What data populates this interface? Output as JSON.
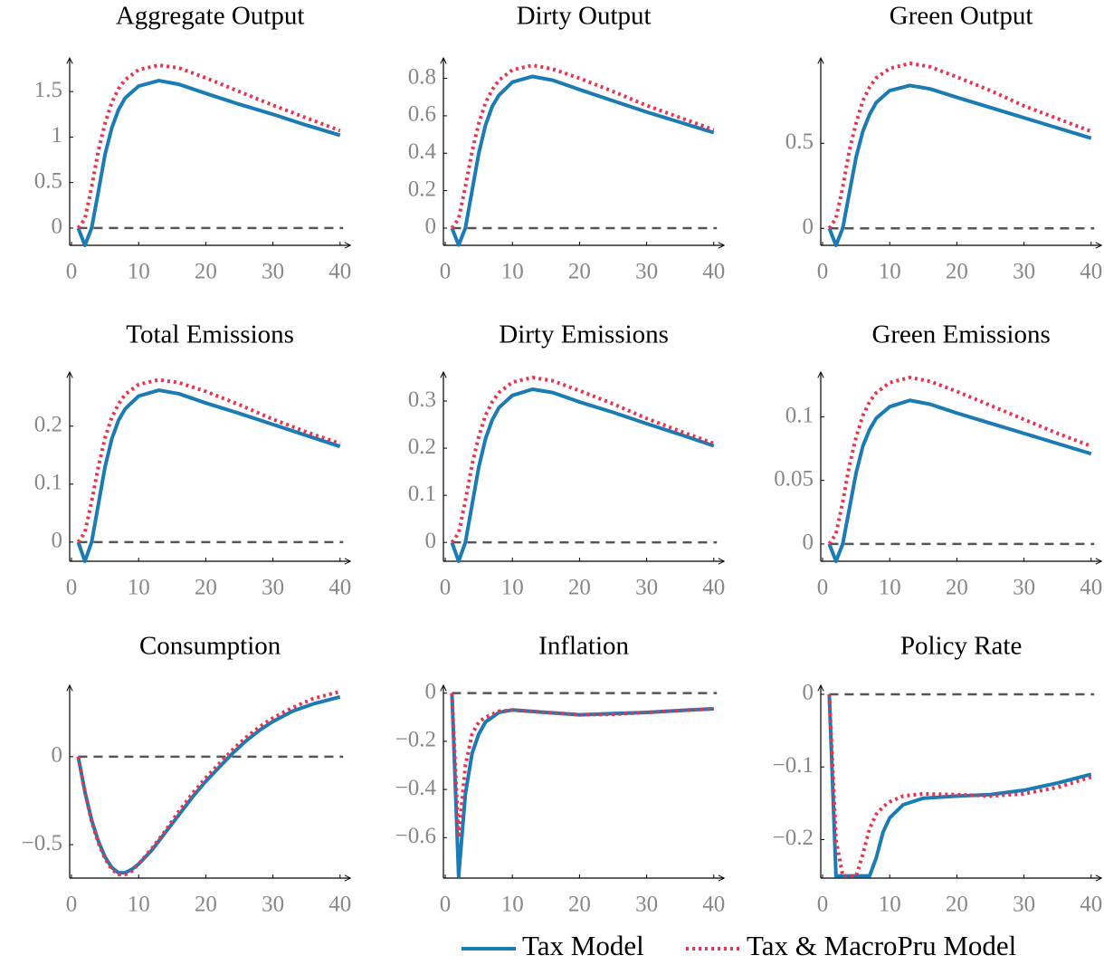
{
  "chart_data": [
    {
      "type": "line",
      "title": "Aggregate Output",
      "x": [
        1,
        2,
        3,
        4,
        5,
        6,
        7,
        8,
        10,
        13,
        16,
        20,
        25,
        30,
        35,
        40
      ],
      "series": [
        {
          "name": "Tax Model",
          "color": "#1a7bb5",
          "values": [
            0,
            -0.19,
            0,
            0.4,
            0.81,
            1.1,
            1.3,
            1.43,
            1.56,
            1.62,
            1.58,
            1.48,
            1.36,
            1.25,
            1.13,
            1.02
          ]
        },
        {
          "name": "Tax & MacroPru Model",
          "color": "#e8344e",
          "values": [
            0,
            0.1,
            0.45,
            0.85,
            1.15,
            1.38,
            1.53,
            1.63,
            1.74,
            1.79,
            1.76,
            1.65,
            1.5,
            1.35,
            1.21,
            1.07
          ]
        }
      ],
      "xlim": [
        0,
        41
      ],
      "xticks": [
        0,
        10,
        20,
        30,
        40
      ],
      "ylim": [
        -0.19,
        1.81
      ],
      "yticks": [
        0,
        0.5,
        1,
        1.5
      ]
    },
    {
      "type": "line",
      "title": "Dirty Output",
      "x": [
        1,
        2,
        3,
        4,
        5,
        6,
        7,
        8,
        10,
        13,
        16,
        20,
        25,
        30,
        35,
        40
      ],
      "series": [
        {
          "name": "Tax Model",
          "color": "#1a7bb5",
          "values": [
            0,
            -0.09,
            0,
            0.2,
            0.4,
            0.55,
            0.65,
            0.71,
            0.78,
            0.81,
            0.79,
            0.74,
            0.68,
            0.62,
            0.565,
            0.51
          ]
        },
        {
          "name": "Tax & MacroPru Model",
          "color": "#e8344e",
          "values": [
            0,
            0.05,
            0.22,
            0.41,
            0.56,
            0.67,
            0.74,
            0.79,
            0.845,
            0.87,
            0.85,
            0.8,
            0.73,
            0.655,
            0.59,
            0.525
          ]
        }
      ],
      "xlim": [
        0,
        41
      ],
      "xticks": [
        0,
        10,
        20,
        30,
        40
      ],
      "ylim": [
        -0.092,
        0.88
      ],
      "yticks": [
        0,
        0.2,
        0.4,
        0.6,
        0.8
      ]
    },
    {
      "type": "line",
      "title": "Green Output",
      "x": [
        1,
        2,
        3,
        4,
        5,
        6,
        7,
        8,
        10,
        13,
        16,
        20,
        25,
        30,
        35,
        40
      ],
      "series": [
        {
          "name": "Tax Model",
          "color": "#1a7bb5",
          "values": [
            0,
            -0.1,
            0,
            0.21,
            0.42,
            0.57,
            0.67,
            0.74,
            0.81,
            0.84,
            0.82,
            0.77,
            0.71,
            0.65,
            0.59,
            0.53
          ]
        },
        {
          "name": "Tax & MacroPru Model",
          "color": "#e8344e",
          "values": [
            0,
            0.06,
            0.24,
            0.46,
            0.62,
            0.75,
            0.83,
            0.885,
            0.94,
            0.97,
            0.95,
            0.89,
            0.81,
            0.72,
            0.645,
            0.57
          ]
        }
      ],
      "xlim": [
        0,
        41
      ],
      "xticks": [
        0,
        10,
        20,
        30,
        40
      ],
      "ylim": [
        -0.1,
        0.97
      ],
      "yticks": [
        0,
        0.5
      ]
    },
    {
      "type": "line",
      "title": "Total Emissions",
      "x": [
        1,
        2,
        3,
        4,
        5,
        6,
        7,
        8,
        10,
        13,
        16,
        20,
        25,
        30,
        35,
        40
      ],
      "series": [
        {
          "name": "Tax Model",
          "color": "#1a7bb5",
          "values": [
            0,
            -0.033,
            0,
            0.065,
            0.13,
            0.178,
            0.21,
            0.23,
            0.252,
            0.262,
            0.256,
            0.24,
            0.222,
            0.203,
            0.184,
            0.165
          ]
        },
        {
          "name": "Tax & MacroPru Model",
          "color": "#e8344e",
          "values": [
            0,
            0.017,
            0.07,
            0.13,
            0.18,
            0.215,
            0.238,
            0.255,
            0.272,
            0.28,
            0.275,
            0.26,
            0.237,
            0.212,
            0.19,
            0.17
          ]
        }
      ],
      "xlim": [
        0,
        41
      ],
      "xticks": [
        0,
        10,
        20,
        30,
        40
      ],
      "ylim": [
        -0.033,
        0.284
      ],
      "yticks": [
        0,
        0.1,
        0.2
      ]
    },
    {
      "type": "line",
      "title": "Dirty Emissions",
      "x": [
        1,
        2,
        3,
        4,
        5,
        6,
        7,
        8,
        10,
        13,
        16,
        20,
        25,
        30,
        35,
        40
      ],
      "series": [
        {
          "name": "Tax Model",
          "color": "#1a7bb5",
          "values": [
            0,
            -0.04,
            0,
            0.08,
            0.16,
            0.22,
            0.26,
            0.286,
            0.312,
            0.325,
            0.318,
            0.298,
            0.276,
            0.252,
            0.229,
            0.205
          ]
        },
        {
          "name": "Tax & MacroPru Model",
          "color": "#e8344e",
          "values": [
            0,
            0.02,
            0.088,
            0.165,
            0.225,
            0.27,
            0.298,
            0.318,
            0.34,
            0.35,
            0.343,
            0.322,
            0.294,
            0.263,
            0.236,
            0.21
          ]
        }
      ],
      "xlim": [
        0,
        41
      ],
      "xticks": [
        0,
        10,
        20,
        30,
        40
      ],
      "ylim": [
        -0.04,
        0.35
      ],
      "yticks": [
        0,
        0.1,
        0.2,
        0.3
      ]
    },
    {
      "type": "line",
      "title": "Green Emissions",
      "x": [
        1,
        2,
        3,
        4,
        5,
        6,
        7,
        8,
        10,
        13,
        16,
        20,
        25,
        30,
        35,
        40
      ],
      "series": [
        {
          "name": "Tax Model",
          "color": "#1a7bb5",
          "values": [
            0,
            -0.0136,
            0,
            0.028,
            0.056,
            0.077,
            0.09,
            0.099,
            0.108,
            0.113,
            0.11,
            0.103,
            0.095,
            0.087,
            0.079,
            0.071
          ]
        },
        {
          "name": "Tax & MacroPru Model",
          "color": "#e8344e",
          "values": [
            0,
            0.008,
            0.033,
            0.062,
            0.084,
            0.101,
            0.112,
            0.119,
            0.127,
            0.131,
            0.128,
            0.12,
            0.109,
            0.098,
            0.087,
            0.077
          ]
        }
      ],
      "xlim": [
        0,
        41
      ],
      "xticks": [
        0,
        10,
        20,
        30,
        40
      ],
      "ylim": [
        -0.0136,
        0.131
      ],
      "yticks": [
        0,
        0.05,
        0.1
      ]
    },
    {
      "type": "line",
      "title": "Consumption",
      "x": [
        1,
        2,
        3,
        4,
        5,
        6,
        7,
        8,
        9,
        10,
        12,
        14,
        16,
        18,
        20,
        22,
        24,
        26,
        28,
        30,
        33,
        36,
        40
      ],
      "series": [
        {
          "name": "Tax Model",
          "color": "#1a7bb5",
          "values": [
            0,
            -0.2,
            -0.36,
            -0.48,
            -0.57,
            -0.63,
            -0.66,
            -0.66,
            -0.64,
            -0.61,
            -0.53,
            -0.43,
            -0.33,
            -0.23,
            -0.14,
            -0.06,
            0.02,
            0.09,
            0.15,
            0.2,
            0.26,
            0.3,
            0.34
          ]
        },
        {
          "name": "Tax & MacroPru Model",
          "color": "#e8344e",
          "values": [
            0,
            -0.2,
            -0.37,
            -0.49,
            -0.58,
            -0.64,
            -0.67,
            -0.67,
            -0.65,
            -0.61,
            -0.52,
            -0.42,
            -0.31,
            -0.21,
            -0.12,
            -0.04,
            0.04,
            0.11,
            0.17,
            0.22,
            0.28,
            0.33,
            0.37
          ]
        }
      ],
      "xlim": [
        0,
        41
      ],
      "xticks": [
        0,
        10,
        20,
        30,
        40
      ],
      "ylim": [
        -0.69,
        0.375
      ],
      "yticks": [
        {
          "value": -0.5,
          "label": "−0.5"
        },
        0
      ]
    },
    {
      "type": "line",
      "title": "Inflation",
      "x": [
        1,
        2,
        3,
        4,
        5,
        6,
        8,
        10,
        15,
        20,
        25,
        30,
        35,
        40
      ],
      "series": [
        {
          "name": "Tax Model",
          "color": "#1a7bb5",
          "values": [
            0,
            -0.76,
            -0.42,
            -0.25,
            -0.17,
            -0.12,
            -0.08,
            -0.07,
            -0.08,
            -0.09,
            -0.085,
            -0.08,
            -0.072,
            -0.065
          ]
        },
        {
          "name": "Tax & MacroPru Model",
          "color": "#e8344e",
          "values": [
            0,
            -0.6,
            -0.3,
            -0.17,
            -0.12,
            -0.1,
            -0.075,
            -0.07,
            -0.08,
            -0.09,
            -0.088,
            -0.08,
            -0.072,
            -0.065
          ]
        }
      ],
      "xlim": [
        0,
        41
      ],
      "xticks": [
        0,
        10,
        20,
        30,
        40
      ],
      "ylim": [
        -0.768,
        0.01
      ],
      "yticks": [
        {
          "value": -0.6,
          "label": "−0.6"
        },
        {
          "value": -0.4,
          "label": "−0.4"
        },
        {
          "value": -0.2,
          "label": "−0.2"
        },
        0
      ]
    },
    {
      "type": "line",
      "title": "Policy Rate",
      "x": [
        1,
        2,
        3,
        4,
        5,
        6,
        7,
        8,
        9,
        10,
        12,
        15,
        20,
        25,
        30,
        35,
        40
      ],
      "series": [
        {
          "name": "Tax Model",
          "color": "#1a7bb5",
          "values": [
            0,
            -0.25,
            -0.25,
            -0.25,
            -0.25,
            -0.25,
            -0.25,
            -0.225,
            -0.19,
            -0.17,
            -0.152,
            -0.143,
            -0.14,
            -0.138,
            -0.132,
            -0.122,
            -0.11
          ]
        },
        {
          "name": "Tax & MacroPru Model",
          "color": "#e8344e",
          "values": [
            0,
            -0.2,
            -0.25,
            -0.25,
            -0.25,
            -0.22,
            -0.185,
            -0.165,
            -0.155,
            -0.148,
            -0.14,
            -0.137,
            -0.138,
            -0.14,
            -0.137,
            -0.128,
            -0.114
          ]
        }
      ],
      "xlim": [
        0,
        41
      ],
      "xticks": [
        0,
        10,
        20,
        30,
        40
      ],
      "ylim": [
        -0.253,
        0.005
      ],
      "yticks": [
        {
          "value": -0.2,
          "label": "−0.2"
        },
        {
          "value": -0.1,
          "label": "−0.1"
        },
        0
      ]
    }
  ]
}
